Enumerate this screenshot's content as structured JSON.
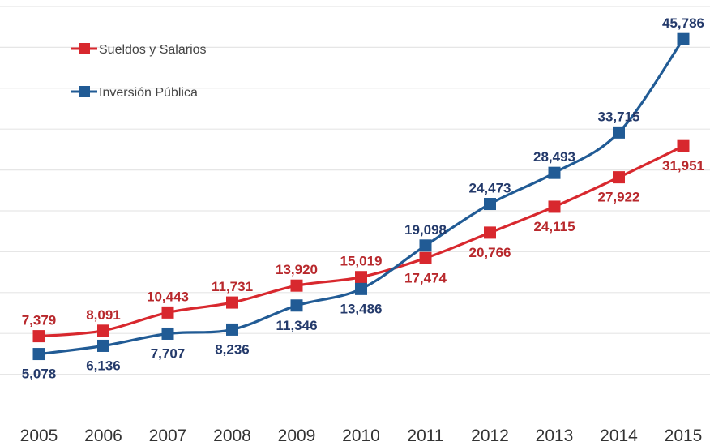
{
  "chart_data": {
    "type": "line",
    "x": [
      "2005",
      "2006",
      "2007",
      "2008",
      "2009",
      "2010",
      "2011",
      "2012",
      "2013",
      "2014",
      "2015"
    ],
    "series": [
      {
        "name": "Sueldos y Salarios",
        "color": "#d8282e",
        "label_color": "#b8282c",
        "values": [
          7379,
          8091,
          10443,
          11731,
          13920,
          15019,
          17474,
          20766,
          24115,
          27922,
          31951
        ],
        "labels": [
          "7,379",
          "8,091",
          "10,443",
          "11,731",
          "13,920",
          "15,019",
          "17,474",
          "20,766",
          "24,115",
          "27,922",
          "31,951"
        ]
      },
      {
        "name": "Inversión Pública",
        "color": "#215b95",
        "label_color": "#243a6b",
        "values": [
          5078,
          6136,
          7707,
          8236,
          11346,
          13486,
          19098,
          24473,
          28493,
          33715,
          45786
        ],
        "labels": [
          "5,078",
          "6,136",
          "7,707",
          "8,236",
          "11,346",
          "13,486",
          "19,098",
          "24,473",
          "28,493",
          "33,715",
          "45,786"
        ]
      }
    ],
    "title": "",
    "xlabel": "",
    "ylabel": "",
    "grid": true,
    "legend": "top-left",
    "line_style": "smooth"
  }
}
